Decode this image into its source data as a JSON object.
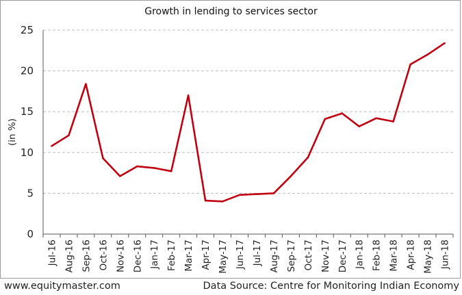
{
  "chart_data": {
    "type": "line",
    "title": "Growth in lending to services sector",
    "ylabel": "(in %)",
    "xlabel": "",
    "ylim": [
      0,
      25
    ],
    "yticks": [
      0,
      5,
      10,
      15,
      20,
      25
    ],
    "grid": true,
    "categories": [
      "Jul-16",
      "Aug-16",
      "Sep-16",
      "Oct-16",
      "Nov-16",
      "Dec-16",
      "Jan-17",
      "Feb-17",
      "Mar-17",
      "Apr-17",
      "May-17",
      "Jun-17",
      "Jul-17",
      "Aug-17",
      "Sep-17",
      "Oct-17",
      "Nov-17",
      "Dec-17",
      "Jan-18",
      "Feb-18",
      "Mar-18",
      "Apr-18",
      "May-18",
      "Jun-18"
    ],
    "series": [
      {
        "values": [
          10.8,
          12.1,
          18.4,
          9.3,
          7.1,
          8.3,
          8.1,
          7.7,
          17.0,
          4.1,
          4.0,
          4.8,
          4.9,
          5.0,
          7.1,
          9.4,
          14.1,
          14.8,
          13.2,
          14.2,
          13.8,
          20.8,
          22.0,
          23.4
        ],
        "color": "#c0000f"
      }
    ]
  },
  "footer": {
    "source_left": "www.equitymaster.com",
    "source_right": "Data Source: Centre for Monitoring Indian Economy"
  }
}
